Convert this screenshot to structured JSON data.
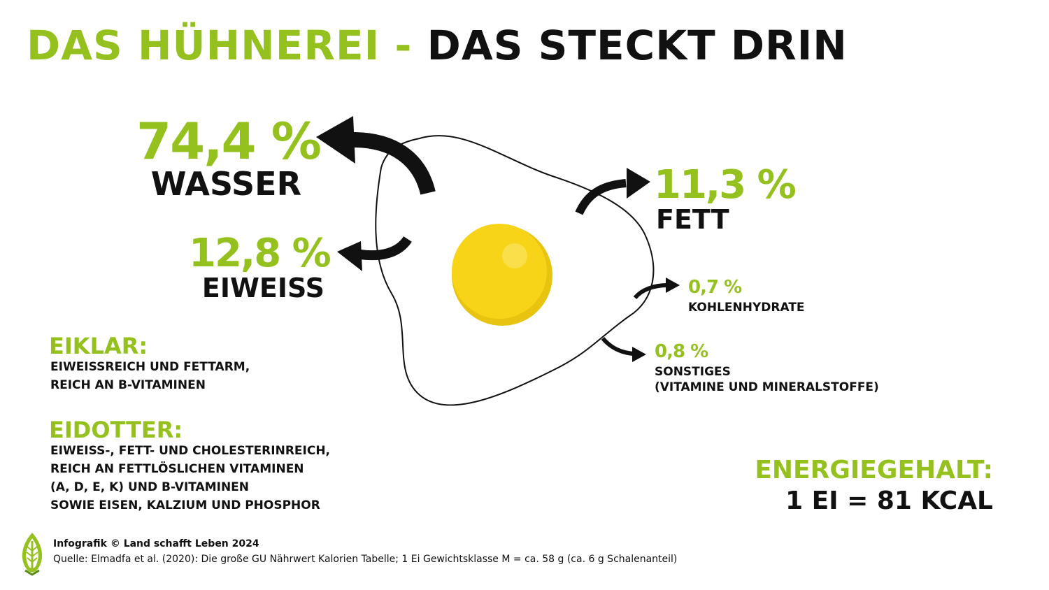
{
  "title": {
    "part1": "DAS HÜHNEREI -",
    "part2": "DAS STECKT DRIN"
  },
  "chart_data": {
    "type": "pie",
    "title": "DAS HÜHNEREI - DAS STECKT DRIN",
    "unit": "%",
    "categories": [
      "WASSER",
      "EIWEISS",
      "FETT",
      "KOHLENHYDRATE",
      "SONSTIGES (VITAMINE UND MINERALSTOFFE)"
    ],
    "values": [
      74.4,
      12.8,
      11.3,
      0.7,
      0.8
    ],
    "series": [
      {
        "label": "WASSER",
        "value_text": "74,4 %",
        "value": 74.4
      },
      {
        "label": "EIWEISS",
        "value_text": "12,8 %",
        "value": 12.8
      },
      {
        "label": "FETT",
        "value_text": "11,3 %",
        "value": 11.3
      },
      {
        "label": "KOHLENHYDRATE",
        "value_text": "0,7 %",
        "value": 0.7
      },
      {
        "label": "SONSTIGES",
        "label_line2": "(VITAMINE UND MINERALSTOFFE)",
        "value_text": "0,8 %",
        "value": 0.8
      }
    ]
  },
  "eiklar": {
    "title": "EIKLAR:",
    "lines": [
      "EIWEISSREICH UND FETTARM,",
      "REICH AN B-VITAMINEN"
    ]
  },
  "eidotter": {
    "title": "EIDOTTER:",
    "lines": [
      "EIWEISS-, FETT- UND CHOLESTERINREICH,",
      "REICH AN FETTLÖSLICHEN VITAMINEN",
      "(A, D, E, K) UND B-VITAMINEN",
      "SOWIE EISEN, KALZIUM UND PHOSPHOR"
    ]
  },
  "energy": {
    "title": "ENERGIEGEHALT:",
    "value": "1 EI = 81 KCAL"
  },
  "footer": {
    "credit": "Infografik © Land schafft Leben 2024",
    "source": "Quelle: Elmadfa et al. (2020): Die große GU Nährwert Kalorien Tabelle; 1 Ei Gewichtsklasse M = ca. 58 g (ca. 6 g Schalenanteil)"
  },
  "colors": {
    "accent": "#95c11f",
    "text": "#111111",
    "yolk": "#f7d417",
    "yolk_shadow": "#e8c310"
  },
  "icons": {
    "logo": "leaf-logo-icon"
  }
}
